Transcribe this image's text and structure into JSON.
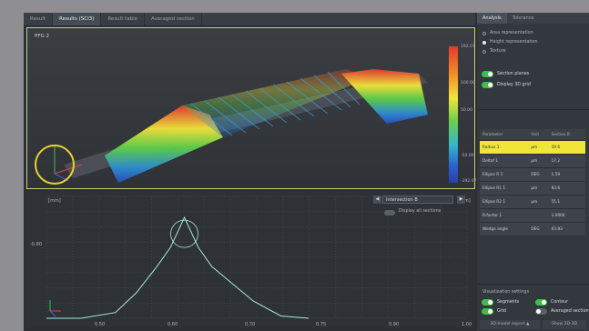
{
  "tabs": [
    "Result",
    "Results (SCI3)",
    "Result table",
    "Averaged section"
  ],
  "view3d": {
    "label": "PFG 2",
    "scale_labels": [
      "192.07",
      "100.00",
      "50.00",
      "-50.00",
      "-192.07"
    ]
  },
  "view2d": {
    "ylabel": "[mm]",
    "xlabel": "[mm]",
    "y_tick": "-0.80",
    "x_ticks": [
      "0.50",
      "0.60",
      "0.70",
      "0.75",
      "0.90",
      "1.00"
    ],
    "dropdown_value": "Intersection B",
    "toggle_label": "Display all sections"
  },
  "side": {
    "tabs": [
      "Analysis",
      "Tolerance"
    ],
    "radios": [
      "Area representation",
      "Height representation",
      "Texture"
    ],
    "selected_radio": 1,
    "switches": [
      "Section planes",
      "Display 3D grid"
    ],
    "table": {
      "headers": [
        "Parameter",
        "Unit",
        "Section B"
      ],
      "rows": [
        [
          "Radius 1",
          "µm",
          "19.6"
        ],
        [
          "Deltaf 1",
          "µm",
          "17.2"
        ],
        [
          "Ellipse R 1",
          "DEG",
          "1.59"
        ],
        [
          "Ellipse R1 1",
          "µm",
          "83.6"
        ],
        [
          "Ellipse R2 1",
          "µm",
          "55.1"
        ],
        [
          "R-factor 1",
          "",
          "1.0004"
        ],
        [
          "Wedge angle",
          "DEG",
          "63.83"
        ]
      ],
      "selected_row": 0
    },
    "vis_title": "Visualization settings",
    "vis_switches": [
      {
        "label": "Segments",
        "on": true
      },
      {
        "label": "Contour",
        "on": true
      },
      {
        "label": "Grid",
        "on": true
      },
      {
        "label": "Averaged section",
        "on": false
      }
    ],
    "buttons": [
      "3D-model export",
      "Show 2D-3D"
    ]
  },
  "profile": {
    "x": [
      0.5,
      0.55,
      0.6,
      0.63,
      0.66,
      0.68,
      0.7,
      0.72,
      0.74,
      0.77,
      0.8,
      0.84,
      0.88
    ],
    "y": [
      0,
      0,
      0.05,
      0.22,
      0.45,
      0.62,
      0.88,
      0.62,
      0.45,
      0.3,
      0.15,
      0.02,
      0
    ]
  },
  "colors": {
    "accent": "#3fbf48",
    "highlight": "#f0e63a",
    "profile": "#a6e7e0"
  }
}
